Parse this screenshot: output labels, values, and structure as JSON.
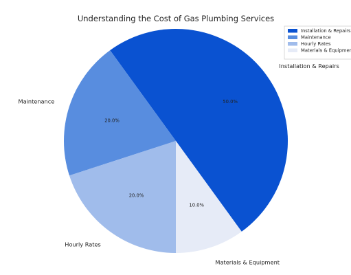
{
  "chart_data": {
    "type": "pie",
    "title": "Understanding the Cost of Gas Plumbing Services",
    "categories": [
      "Installation & Repairs",
      "Maintenance",
      "Hourly Rates",
      "Materials & Equipment"
    ],
    "values": [
      50.0,
      20.0,
      20.0,
      10.0
    ],
    "value_labels": [
      "50.0%",
      "20.0%",
      "20.0%",
      "10.0%"
    ],
    "colors": [
      "#0a52d1",
      "#588ddf",
      "#a0bceb",
      "#e6ebf7"
    ],
    "legend": {
      "placement": "top-right",
      "entries": [
        "Installation & Repairs",
        "Maintenance",
        "Hourly Rates",
        "Materials & Equipment"
      ]
    }
  }
}
